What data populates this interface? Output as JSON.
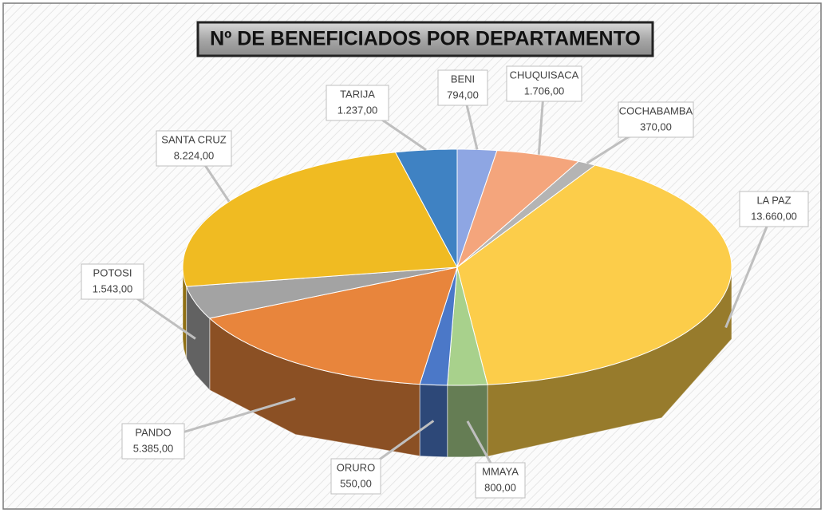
{
  "chart_data": {
    "type": "pie3d",
    "title": "Nº DE BENEFICIADOS POR DEPARTAMENTO",
    "categories": [
      "BENI",
      "CHUQUISACA",
      "COCHABAMBA",
      "LA PAZ",
      "MMAYA",
      "ORURO",
      "PANDO",
      "POTOSI",
      "SANTA CRUZ",
      "TARIJA"
    ],
    "values": [
      794,
      1706,
      370,
      13660,
      800,
      550,
      5385,
      1543,
      8224,
      1237
    ],
    "value_labels": [
      "794,00",
      "1.706,00",
      "370,00",
      "13.660,00",
      "800,00",
      "550,00",
      "5.385,00",
      "1.543,00",
      "8.224,00",
      "1.237,00"
    ],
    "colors": [
      "#8ea6e3",
      "#f4a57c",
      "#b4b4b4",
      "#fccd4a",
      "#a8d18c",
      "#4b78c8",
      "#e8853c",
      "#a3a3a3",
      "#f0bb22",
      "#3f82c3"
    ]
  }
}
